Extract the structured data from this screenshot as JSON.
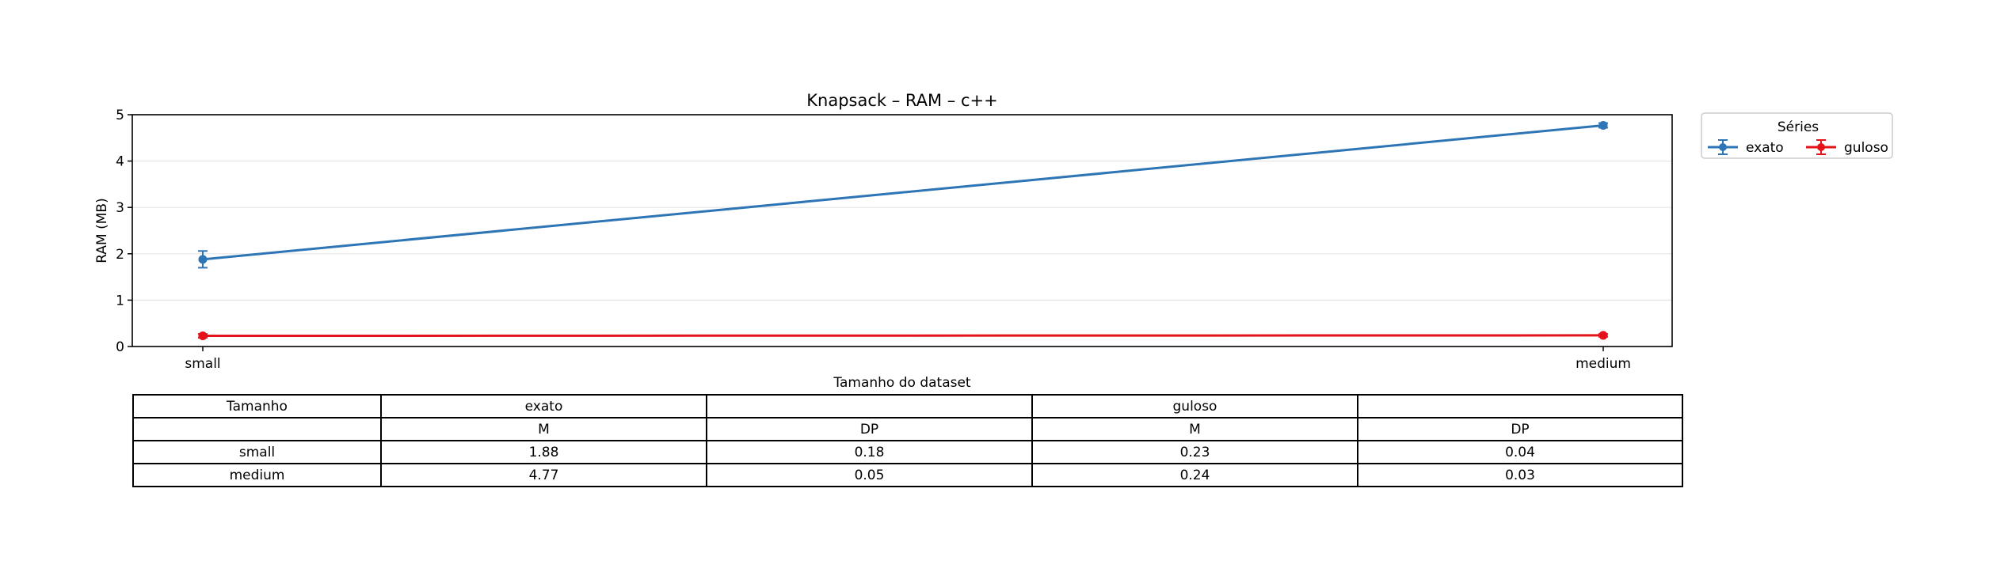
{
  "chart_data": {
    "type": "line",
    "title": "Knapsack – RAM – c++",
    "xlabel": "Tamanho do dataset",
    "ylabel": "RAM (MB)",
    "categories": [
      "small",
      "medium"
    ],
    "ylim": [
      0,
      5
    ],
    "yticks": [
      "0",
      "1",
      "2",
      "3",
      "4",
      "5"
    ],
    "grid": "horizontal",
    "legend": {
      "title": "Séries",
      "placement": "outside-top-right"
    },
    "series": [
      {
        "name": "exato",
        "color": "#2e75b6",
        "values": [
          1.88,
          4.77
        ],
        "errors": [
          0.18,
          0.05
        ]
      },
      {
        "name": "guloso",
        "color": "#e3121b",
        "values": [
          0.23,
          0.24
        ],
        "errors": [
          0.04,
          0.03
        ]
      }
    ],
    "table": {
      "header1": [
        "Tamanho",
        "exato",
        "",
        "guloso",
        ""
      ],
      "header2": [
        "",
        "M",
        "DP",
        "M",
        "DP"
      ],
      "rows": [
        [
          "small",
          "1.88",
          "0.18",
          "0.23",
          "0.04"
        ],
        [
          "medium",
          "4.77",
          "0.05",
          "0.24",
          "0.03"
        ]
      ]
    }
  }
}
